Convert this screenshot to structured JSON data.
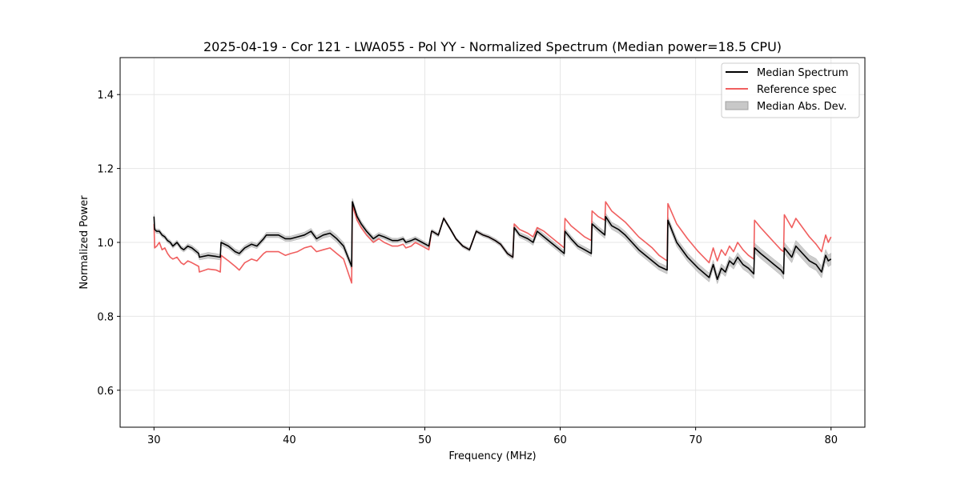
{
  "chart_data": {
    "type": "line",
    "title": "2025-04-19 - Cor 121 - LWA055 - Pol YY - Normalized Spectrum (Median power=18.5 CPU)",
    "xlabel": "Frequency (MHz)",
    "ylabel": "Normalized Power",
    "xlim": [
      27.5,
      82.5
    ],
    "ylim": [
      0.5,
      1.5
    ],
    "xticks": [
      30,
      40,
      50,
      60,
      70,
      80
    ],
    "yticks": [
      0.6,
      0.8,
      1.0,
      1.2,
      1.4
    ],
    "xtick_labels": [
      "30",
      "40",
      "50",
      "60",
      "70",
      "80"
    ],
    "ytick_labels": [
      "0.6",
      "0.8",
      "1.0",
      "1.2",
      "1.4"
    ],
    "grid": true,
    "legend_position": "top-right",
    "legend": {
      "median": "Median Spectrum",
      "reference": "Reference spec",
      "mad": "Median Abs. Dev."
    },
    "colors": {
      "median": "#000000",
      "reference": "#f05f5f",
      "mad": "#b0b0b0"
    },
    "series": [
      {
        "name": "Median Spectrum",
        "x": [
          30.0,
          30.05,
          30.2,
          30.4,
          30.6,
          30.8,
          31.0,
          31.2,
          31.4,
          31.7,
          32.0,
          32.2,
          32.5,
          32.8,
          33.3,
          33.35,
          34.0,
          34.6,
          34.9,
          34.95,
          35.5,
          36.0,
          36.3,
          36.7,
          37.2,
          37.6,
          38.1,
          38.3,
          38.7,
          39.2,
          39.7,
          40.1,
          40.6,
          41.1,
          41.6,
          42.0,
          42.5,
          43.0,
          43.5,
          44.0,
          44.6,
          44.65,
          45.0,
          45.3,
          45.7,
          46.2,
          46.6,
          47.0,
          47.3,
          47.6,
          48.0,
          48.4,
          48.6,
          49.0,
          49.3,
          49.8,
          50.3,
          50.5,
          50.55,
          51.0,
          51.4,
          51.9,
          52.3,
          52.8,
          53.3,
          53.8,
          54.3,
          54.7,
          55.2,
          55.6,
          56.1,
          56.5,
          56.6,
          57.0,
          57.3,
          57.6,
          58.0,
          58.3,
          58.8,
          59.3,
          59.8,
          60.3,
          60.35,
          60.8,
          61.3,
          61.8,
          62.3,
          62.35,
          62.8,
          63.3,
          63.35,
          63.8,
          64.3,
          64.8,
          65.3,
          65.8,
          66.3,
          66.8,
          67.3,
          67.9,
          67.95,
          68.6,
          69.4,
          70.2,
          71.0,
          71.3,
          71.6,
          71.9,
          72.2,
          72.5,
          72.8,
          73.1,
          73.5,
          73.9,
          74.3,
          74.35,
          74.8,
          75.3,
          75.8,
          76.3,
          76.5,
          76.55,
          77.1,
          77.4,
          77.9,
          78.4,
          78.9,
          79.3,
          79.6,
          79.8,
          80.0
        ],
        "values": [
          1.07,
          1.035,
          1.03,
          1.03,
          1.02,
          1.015,
          1.005,
          1.0,
          0.99,
          1.0,
          0.985,
          0.98,
          0.99,
          0.985,
          0.97,
          0.96,
          0.965,
          0.962,
          0.96,
          1.0,
          0.99,
          0.975,
          0.97,
          0.985,
          0.995,
          0.99,
          1.01,
          1.02,
          1.02,
          1.02,
          1.01,
          1.01,
          1.015,
          1.02,
          1.03,
          1.01,
          1.02,
          1.025,
          1.01,
          0.99,
          0.935,
          1.11,
          1.07,
          1.05,
          1.03,
          1.01,
          1.02,
          1.015,
          1.01,
          1.005,
          1.005,
          1.01,
          1.0,
          1.005,
          1.01,
          1.0,
          0.99,
          1.03,
          1.03,
          1.02,
          1.065,
          1.035,
          1.01,
          0.99,
          0.98,
          1.03,
          1.02,
          1.015,
          1.005,
          0.995,
          0.97,
          0.96,
          1.04,
          1.02,
          1.015,
          1.01,
          1.0,
          1.03,
          1.015,
          1.0,
          0.985,
          0.97,
          1.03,
          1.01,
          0.99,
          0.98,
          0.97,
          1.05,
          1.035,
          1.02,
          1.07,
          1.045,
          1.035,
          1.02,
          1.0,
          0.98,
          0.965,
          0.95,
          0.935,
          0.925,
          1.06,
          1.0,
          0.96,
          0.93,
          0.905,
          0.94,
          0.9,
          0.93,
          0.92,
          0.95,
          0.94,
          0.96,
          0.94,
          0.93,
          0.915,
          0.985,
          0.97,
          0.955,
          0.94,
          0.925,
          0.915,
          0.985,
          0.96,
          0.99,
          0.97,
          0.95,
          0.94,
          0.92,
          0.965,
          0.95,
          0.955
        ]
      },
      {
        "name": "Reference spec",
        "x": [
          30.0,
          30.05,
          30.2,
          30.4,
          30.6,
          30.8,
          31.0,
          31.2,
          31.4,
          31.7,
          32.0,
          32.2,
          32.5,
          32.8,
          33.3,
          33.35,
          34.0,
          34.6,
          34.9,
          34.95,
          35.5,
          36.0,
          36.3,
          36.7,
          37.2,
          37.6,
          38.1,
          38.3,
          38.7,
          39.2,
          39.7,
          40.1,
          40.6,
          41.1,
          41.6,
          42.0,
          42.5,
          43.0,
          43.5,
          44.0,
          44.6,
          44.65,
          45.0,
          45.3,
          45.7,
          46.2,
          46.6,
          47.0,
          47.3,
          47.6,
          48.0,
          48.4,
          48.6,
          49.0,
          49.3,
          49.8,
          50.3,
          50.5,
          50.55,
          51.0,
          51.4,
          51.9,
          52.3,
          52.8,
          53.3,
          53.8,
          54.3,
          54.7,
          55.2,
          55.6,
          56.1,
          56.5,
          56.6,
          57.0,
          57.3,
          57.6,
          58.0,
          58.3,
          58.8,
          59.3,
          59.8,
          60.3,
          60.35,
          60.8,
          61.3,
          61.8,
          62.3,
          62.35,
          62.8,
          63.3,
          63.35,
          63.8,
          64.3,
          64.8,
          65.3,
          65.8,
          66.3,
          66.8,
          67.3,
          67.9,
          67.95,
          68.6,
          69.4,
          70.2,
          71.0,
          71.3,
          71.6,
          71.9,
          72.2,
          72.5,
          72.8,
          73.1,
          73.5,
          73.9,
          74.3,
          74.35,
          74.8,
          75.3,
          75.8,
          76.3,
          76.5,
          76.55,
          77.1,
          77.4,
          77.9,
          78.4,
          78.9,
          79.3,
          79.6,
          79.8,
          80.0
        ],
        "values": [
          1.05,
          0.985,
          0.99,
          1.0,
          0.98,
          0.985,
          0.97,
          0.96,
          0.955,
          0.96,
          0.945,
          0.94,
          0.95,
          0.945,
          0.935,
          0.92,
          0.928,
          0.925,
          0.92,
          0.965,
          0.95,
          0.935,
          0.925,
          0.945,
          0.955,
          0.95,
          0.97,
          0.975,
          0.975,
          0.975,
          0.965,
          0.97,
          0.975,
          0.985,
          0.99,
          0.975,
          0.98,
          0.985,
          0.97,
          0.955,
          0.89,
          1.1,
          1.06,
          1.04,
          1.02,
          1.0,
          1.01,
          1.0,
          0.995,
          0.99,
          0.99,
          0.995,
          0.985,
          0.99,
          1.0,
          0.99,
          0.98,
          1.03,
          1.03,
          1.02,
          1.065,
          1.035,
          1.01,
          0.99,
          0.98,
          1.03,
          1.02,
          1.015,
          1.005,
          0.995,
          0.97,
          0.96,
          1.05,
          1.035,
          1.03,
          1.025,
          1.015,
          1.04,
          1.03,
          1.015,
          1.0,
          0.985,
          1.065,
          1.045,
          1.03,
          1.015,
          1.005,
          1.085,
          1.07,
          1.06,
          1.11,
          1.085,
          1.07,
          1.055,
          1.035,
          1.015,
          1.0,
          0.985,
          0.965,
          0.95,
          1.105,
          1.05,
          1.01,
          0.975,
          0.945,
          0.985,
          0.95,
          0.98,
          0.965,
          0.99,
          0.975,
          1.0,
          0.98,
          0.965,
          0.955,
          1.06,
          1.04,
          1.02,
          1.0,
          0.98,
          0.975,
          1.075,
          1.04,
          1.065,
          1.04,
          1.015,
          0.995,
          0.975,
          1.02,
          1.0,
          1.015
        ]
      },
      {
        "name": "Median Abs. Dev.",
        "x": [
          30.0,
          32.0,
          34.0,
          36.0,
          38.0,
          40.0,
          42.0,
          44.0,
          46.0,
          48.0,
          50.0,
          52.0,
          54.0,
          56.0,
          58.0,
          60.0,
          62.0,
          64.0,
          66.0,
          68.0,
          70.0,
          72.0,
          74.0,
          76.0,
          78.0,
          80.0
        ],
        "values": [
          0.006,
          0.006,
          0.008,
          0.007,
          0.007,
          0.007,
          0.008,
          0.01,
          0.007,
          0.006,
          0.006,
          0.004,
          0.005,
          0.006,
          0.008,
          0.008,
          0.008,
          0.01,
          0.01,
          0.01,
          0.012,
          0.012,
          0.013,
          0.014,
          0.016,
          0.016
        ]
      }
    ]
  }
}
